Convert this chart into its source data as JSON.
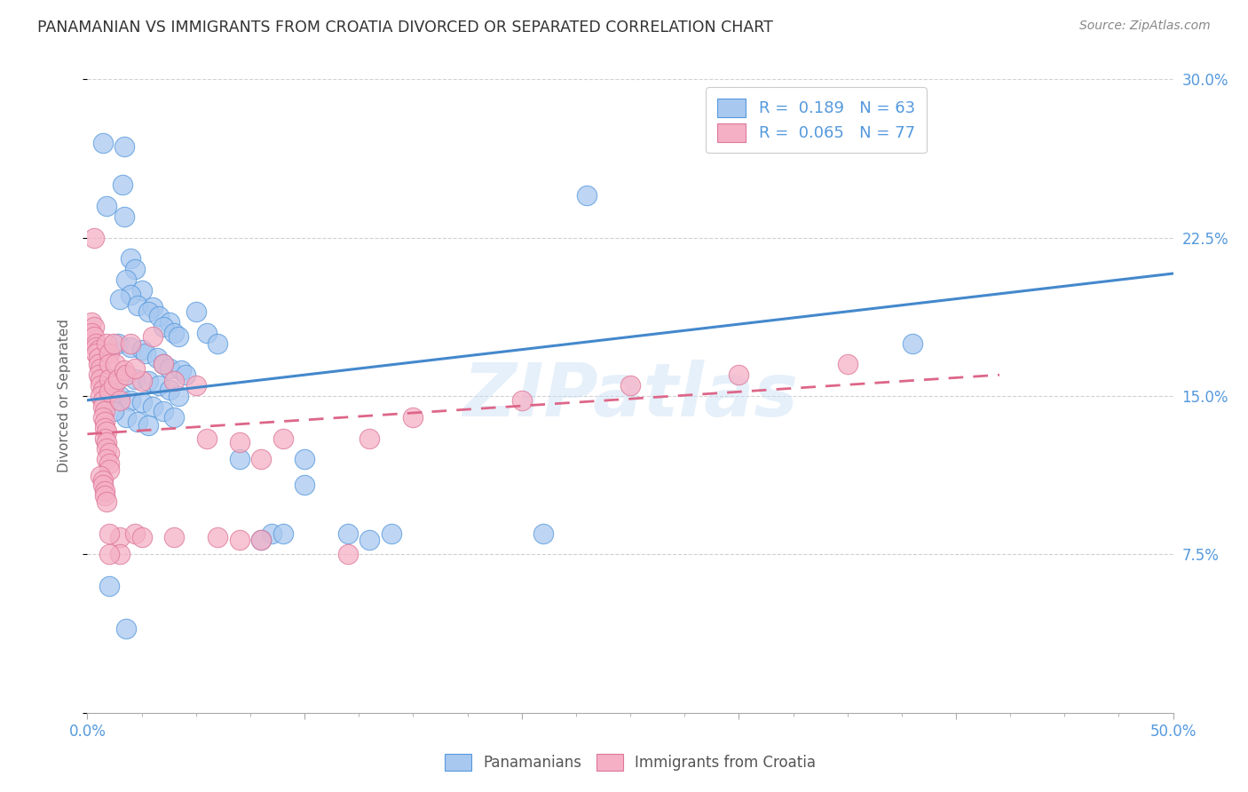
{
  "title": "PANAMANIAN VS IMMIGRANTS FROM CROATIA DIVORCED OR SEPARATED CORRELATION CHART",
  "source": "Source: ZipAtlas.com",
  "ylabel_label": "Divorced or Separated",
  "xlim": [
    0.0,
    0.5
  ],
  "ylim": [
    0.0,
    0.3
  ],
  "xticks": [
    0.0,
    0.1,
    0.2,
    0.3,
    0.4,
    0.5
  ],
  "yticks": [
    0.0,
    0.075,
    0.15,
    0.225,
    0.3
  ],
  "xtick_labels": [
    "0.0%",
    "",
    "",
    "",
    "",
    "50.0%"
  ],
  "ytick_labels": [
    "",
    "7.5%",
    "15.0%",
    "22.5%",
    "30.0%"
  ],
  "legend1_labels": [
    "R =  0.189   N = 63",
    "R =  0.065   N = 77"
  ],
  "legend2_labels": [
    "Panamanians",
    "Immigrants from Croatia"
  ],
  "watermark": "ZIPatlas",
  "blue_color": "#a8c8f0",
  "pink_color": "#f5b0c5",
  "blue_edge_color": "#5599dd",
  "pink_edge_color": "#dd7799",
  "blue_line_color": "#4488cc",
  "pink_line_color": "#dd6688",
  "background_color": "#ffffff",
  "grid_color": "#cccccc",
  "title_color": "#333333",
  "axis_label_color": "#666666",
  "right_ytick_color": "#5599dd",
  "blue_trend": {
    "x_start": 0.0,
    "y_start": 0.148,
    "x_end": 0.5,
    "y_end": 0.208
  },
  "pink_trend": {
    "x_start": 0.0,
    "y_start": 0.132,
    "x_end": 0.42,
    "y_end": 0.16
  },
  "blue_scatter": [
    [
      0.007,
      0.27
    ],
    [
      0.017,
      0.268
    ],
    [
      0.016,
      0.25
    ],
    [
      0.009,
      0.24
    ],
    [
      0.017,
      0.235
    ],
    [
      0.02,
      0.215
    ],
    [
      0.022,
      0.21
    ],
    [
      0.018,
      0.205
    ],
    [
      0.025,
      0.2
    ],
    [
      0.02,
      0.198
    ],
    [
      0.015,
      0.196
    ],
    [
      0.023,
      0.193
    ],
    [
      0.03,
      0.192
    ],
    [
      0.028,
      0.19
    ],
    [
      0.033,
      0.188
    ],
    [
      0.038,
      0.185
    ],
    [
      0.035,
      0.183
    ],
    [
      0.04,
      0.18
    ],
    [
      0.042,
      0.178
    ],
    [
      0.05,
      0.19
    ],
    [
      0.055,
      0.18
    ],
    [
      0.06,
      0.175
    ],
    [
      0.014,
      0.175
    ],
    [
      0.02,
      0.173
    ],
    [
      0.025,
      0.172
    ],
    [
      0.027,
      0.17
    ],
    [
      0.032,
      0.168
    ],
    [
      0.035,
      0.165
    ],
    [
      0.038,
      0.163
    ],
    [
      0.043,
      0.162
    ],
    [
      0.045,
      0.16
    ],
    [
      0.017,
      0.16
    ],
    [
      0.022,
      0.158
    ],
    [
      0.028,
      0.157
    ],
    [
      0.033,
      0.155
    ],
    [
      0.038,
      0.153
    ],
    [
      0.042,
      0.15
    ],
    [
      0.015,
      0.15
    ],
    [
      0.02,
      0.148
    ],
    [
      0.025,
      0.147
    ],
    [
      0.03,
      0.145
    ],
    [
      0.035,
      0.143
    ],
    [
      0.04,
      0.14
    ],
    [
      0.018,
      0.14
    ],
    [
      0.023,
      0.138
    ],
    [
      0.028,
      0.136
    ],
    [
      0.008,
      0.155
    ],
    [
      0.01,
      0.148
    ],
    [
      0.012,
      0.143
    ],
    [
      0.23,
      0.245
    ],
    [
      0.38,
      0.175
    ],
    [
      0.1,
      0.108
    ],
    [
      0.12,
      0.085
    ],
    [
      0.14,
      0.085
    ],
    [
      0.07,
      0.12
    ],
    [
      0.085,
      0.085
    ],
    [
      0.09,
      0.085
    ],
    [
      0.21,
      0.085
    ],
    [
      0.01,
      0.06
    ],
    [
      0.018,
      0.04
    ],
    [
      0.1,
      0.12
    ],
    [
      0.13,
      0.082
    ],
    [
      0.08,
      0.082
    ]
  ],
  "pink_scatter": [
    [
      0.002,
      0.185
    ],
    [
      0.003,
      0.183
    ],
    [
      0.002,
      0.18
    ],
    [
      0.003,
      0.178
    ],
    [
      0.004,
      0.175
    ],
    [
      0.004,
      0.173
    ],
    [
      0.005,
      0.172
    ],
    [
      0.004,
      0.17
    ],
    [
      0.005,
      0.168
    ],
    [
      0.005,
      0.165
    ],
    [
      0.006,
      0.163
    ],
    [
      0.005,
      0.16
    ],
    [
      0.006,
      0.158
    ],
    [
      0.006,
      0.155
    ],
    [
      0.007,
      0.153
    ],
    [
      0.006,
      0.15
    ],
    [
      0.007,
      0.148
    ],
    [
      0.007,
      0.145
    ],
    [
      0.008,
      0.143
    ],
    [
      0.007,
      0.14
    ],
    [
      0.008,
      0.138
    ],
    [
      0.008,
      0.135
    ],
    [
      0.009,
      0.133
    ],
    [
      0.008,
      0.13
    ],
    [
      0.009,
      0.128
    ],
    [
      0.009,
      0.125
    ],
    [
      0.01,
      0.123
    ],
    [
      0.009,
      0.12
    ],
    [
      0.01,
      0.118
    ],
    [
      0.01,
      0.115
    ],
    [
      0.006,
      0.112
    ],
    [
      0.007,
      0.11
    ],
    [
      0.007,
      0.108
    ],
    [
      0.008,
      0.105
    ],
    [
      0.008,
      0.103
    ],
    [
      0.009,
      0.1
    ],
    [
      0.003,
      0.225
    ],
    [
      0.009,
      0.175
    ],
    [
      0.01,
      0.17
    ],
    [
      0.01,
      0.165
    ],
    [
      0.01,
      0.158
    ],
    [
      0.01,
      0.152
    ],
    [
      0.012,
      0.175
    ],
    [
      0.012,
      0.155
    ],
    [
      0.013,
      0.165
    ],
    [
      0.014,
      0.158
    ],
    [
      0.015,
      0.148
    ],
    [
      0.015,
      0.083
    ],
    [
      0.015,
      0.075
    ],
    [
      0.017,
      0.162
    ],
    [
      0.018,
      0.16
    ],
    [
      0.02,
      0.175
    ],
    [
      0.022,
      0.085
    ],
    [
      0.025,
      0.157
    ],
    [
      0.01,
      0.085
    ],
    [
      0.01,
      0.075
    ],
    [
      0.035,
      0.165
    ],
    [
      0.022,
      0.163
    ],
    [
      0.055,
      0.13
    ],
    [
      0.07,
      0.128
    ],
    [
      0.08,
      0.12
    ],
    [
      0.09,
      0.13
    ],
    [
      0.12,
      0.075
    ],
    [
      0.13,
      0.13
    ],
    [
      0.15,
      0.14
    ],
    [
      0.03,
      0.178
    ],
    [
      0.04,
      0.157
    ],
    [
      0.05,
      0.155
    ],
    [
      0.2,
      0.148
    ],
    [
      0.25,
      0.155
    ],
    [
      0.3,
      0.16
    ],
    [
      0.35,
      0.165
    ],
    [
      0.04,
      0.083
    ],
    [
      0.06,
      0.083
    ],
    [
      0.07,
      0.082
    ],
    [
      0.08,
      0.082
    ],
    [
      0.025,
      0.083
    ]
  ]
}
